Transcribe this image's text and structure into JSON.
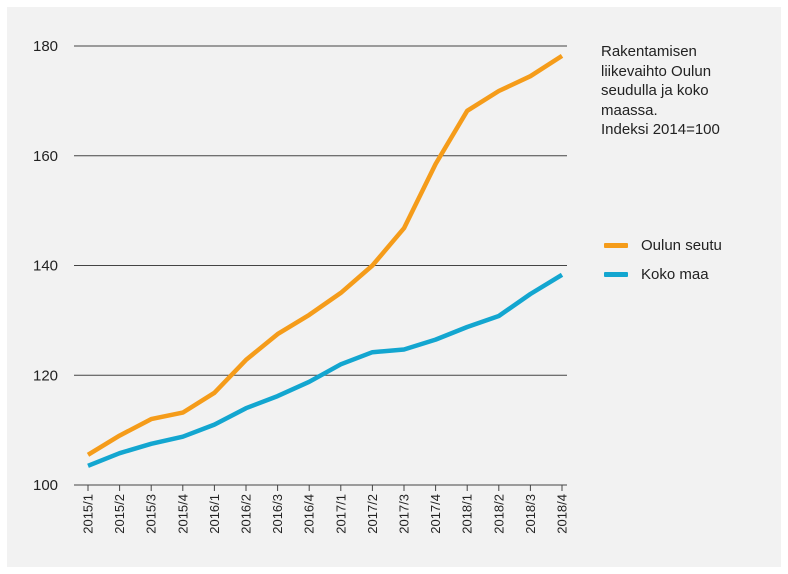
{
  "chart_data": {
    "type": "line",
    "title_lines": [
      "Rakentamisen",
      "liikevaihto Oulun",
      "seudulla ja koko",
      "maassa.",
      "Indeksi 2014=100"
    ],
    "categories": [
      "2015/1",
      "2015/2",
      "2015/3",
      "2015/4",
      "2016/1",
      "2016/2",
      "2016/3",
      "2016/4",
      "2017/1",
      "2017/2",
      "2017/3",
      "2017/4",
      "2018/1",
      "2018/2",
      "2018/3",
      "2018/4"
    ],
    "ylim": [
      100,
      180
    ],
    "yticks": [
      100,
      120,
      140,
      160,
      180
    ],
    "grid": true,
    "legend_position": "right",
    "series": [
      {
        "name": "Oulun seutu",
        "color": "#f59c1a",
        "values": [
          105.5,
          109,
          112,
          113.2,
          116.8,
          122.8,
          127.5,
          131,
          135,
          140,
          146.8,
          158.5,
          168.2,
          171.8,
          174.5,
          178.2
        ]
      },
      {
        "name": "Koko maa",
        "color": "#13a6d0",
        "values": [
          103.5,
          105.8,
          107.5,
          108.8,
          111,
          114,
          116.2,
          118.8,
          122,
          124.2,
          124.7,
          126.5,
          128.8,
          130.8,
          134.8,
          138.3
        ]
      }
    ]
  }
}
